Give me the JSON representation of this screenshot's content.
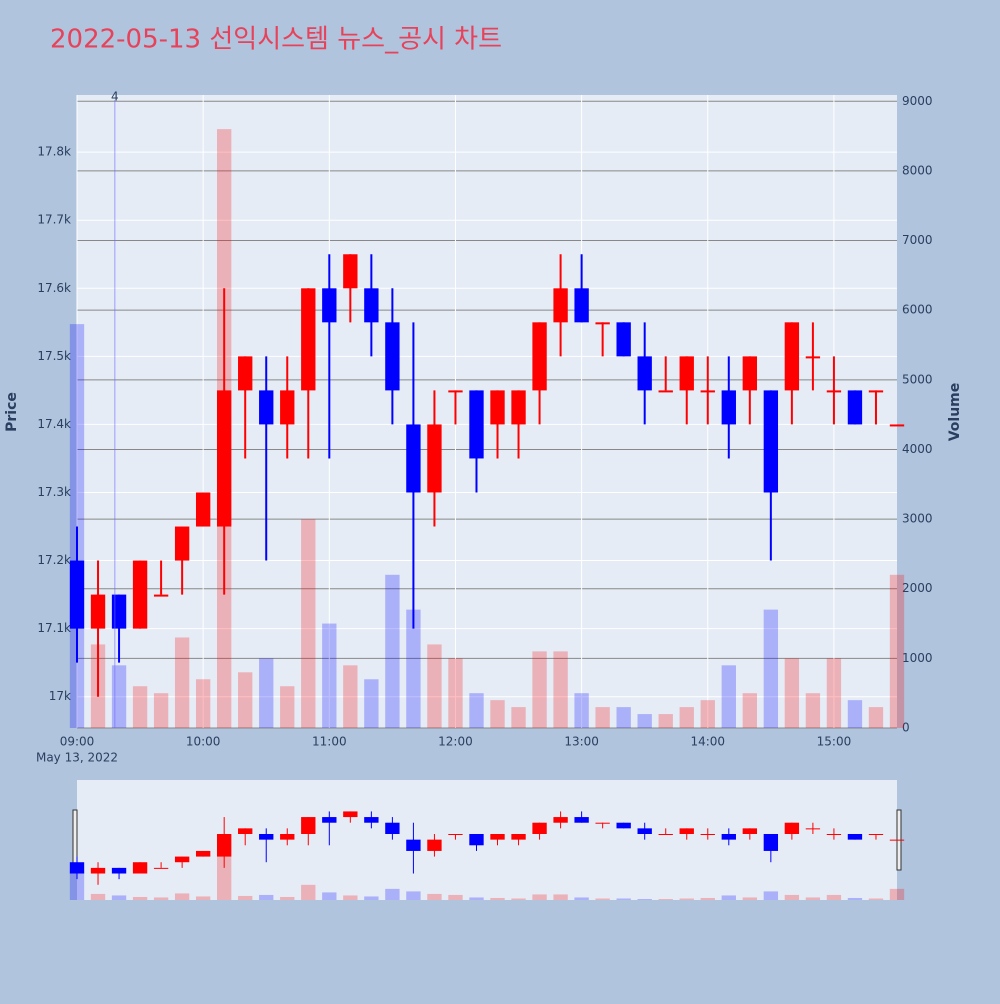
{
  "chart_data": {
    "type": "candlestick",
    "title": "2022-05-13 선익시스템 뉴스_공시 차트",
    "x_date_label": "May 13, 2022",
    "y_label": "Price",
    "y2_label": "Volume",
    "x": [
      "09:00",
      "09:10",
      "09:20",
      "09:30",
      "09:40",
      "09:50",
      "10:00",
      "10:10",
      "10:20",
      "10:30",
      "10:40",
      "10:50",
      "11:00",
      "11:10",
      "11:20",
      "11:30",
      "11:40",
      "11:50",
      "12:00",
      "12:10",
      "12:20",
      "12:30",
      "12:40",
      "12:50",
      "13:00",
      "13:10",
      "13:20",
      "13:30",
      "13:40",
      "13:50",
      "14:00",
      "14:10",
      "14:20",
      "14:30",
      "14:40",
      "14:50",
      "15:00",
      "15:10",
      "15:20",
      "15:30"
    ],
    "open": [
      17200,
      17100,
      17150,
      17100,
      17150,
      17200,
      17250,
      17250,
      17450,
      17450,
      17400,
      17450,
      17600,
      17600,
      17600,
      17550,
      17400,
      17300,
      17450,
      17450,
      17400,
      17400,
      17450,
      17550,
      17600,
      17550,
      17550,
      17500,
      17450,
      17450,
      17450,
      17450,
      17450,
      17450,
      17450,
      17500,
      17450,
      17450,
      17450,
      17400
    ],
    "high": [
      17250,
      17200,
      17150,
      17200,
      17200,
      17250,
      17300,
      17600,
      17500,
      17500,
      17500,
      17600,
      17650,
      17650,
      17650,
      17600,
      17550,
      17450,
      17450,
      17450,
      17450,
      17450,
      17550,
      17650,
      17650,
      17550,
      17550,
      17550,
      17500,
      17500,
      17500,
      17500,
      17500,
      17450,
      17550,
      17550,
      17500,
      17450,
      17450,
      17400
    ],
    "low": [
      17050,
      17000,
      17050,
      17100,
      17150,
      17150,
      17250,
      17150,
      17350,
      17200,
      17350,
      17350,
      17350,
      17550,
      17500,
      17400,
      17100,
      17250,
      17400,
      17300,
      17350,
      17350,
      17400,
      17500,
      17550,
      17500,
      17500,
      17400,
      17450,
      17400,
      17400,
      17350,
      17400,
      17200,
      17400,
      17450,
      17400,
      17400,
      17400,
      17400
    ],
    "close": [
      17100,
      17150,
      17100,
      17200,
      17150,
      17250,
      17300,
      17450,
      17500,
      17400,
      17450,
      17600,
      17550,
      17650,
      17550,
      17450,
      17300,
      17400,
      17450,
      17350,
      17450,
      17450,
      17550,
      17600,
      17550,
      17550,
      17500,
      17450,
      17450,
      17500,
      17450,
      17400,
      17500,
      17300,
      17550,
      17500,
      17450,
      17400,
      17450,
      17400
    ],
    "volume": [
      5800,
      1200,
      900,
      600,
      500,
      1300,
      700,
      8600,
      800,
      1000,
      600,
      3000,
      1500,
      900,
      700,
      2200,
      1700,
      1200,
      1000,
      500,
      400,
      300,
      1100,
      1100,
      500,
      300,
      300,
      200,
      200,
      300,
      400,
      900,
      500,
      1700,
      1000,
      500,
      1000,
      400,
      300,
      2200
    ],
    "increasing_color": "#ff0000",
    "decreasing_color": "#0000ff",
    "xlim": [
      "09:00",
      "15:30"
    ],
    "xticks": [
      "09:00",
      "10:00",
      "11:00",
      "12:00",
      "13:00",
      "14:00",
      "15:00"
    ],
    "ylim": [
      16954,
      17884
    ],
    "yticks": [
      {
        "value": 17000,
        "label": "17k"
      },
      {
        "value": 17100,
        "label": "17.1k"
      },
      {
        "value": 17200,
        "label": "17.2k"
      },
      {
        "value": 17300,
        "label": "17.3k"
      },
      {
        "value": 17400,
        "label": "17.4k"
      },
      {
        "value": 17500,
        "label": "17.5k"
      },
      {
        "value": 17600,
        "label": "17.6k"
      },
      {
        "value": 17700,
        "label": "17.7k"
      },
      {
        "value": 17800,
        "label": "17.8k"
      }
    ],
    "y2lim": [
      0,
      9090
    ],
    "y2ticks": [
      0,
      1000,
      2000,
      3000,
      4000,
      5000,
      6000,
      7000,
      8000,
      9000
    ],
    "annotations": [
      {
        "x": "09:18",
        "text": "4"
      }
    ],
    "grid": true
  }
}
